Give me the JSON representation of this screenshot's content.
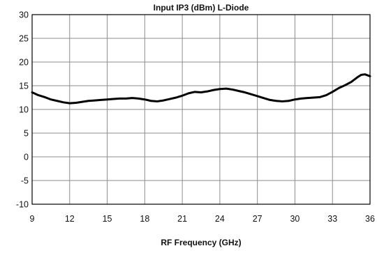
{
  "chart_data": {
    "type": "line",
    "title": "Input IP3 (dBm) L-Diode",
    "xlabel": "RF Frequency (GHz)",
    "ylabel": "",
    "xlim": [
      9,
      36
    ],
    "ylim": [
      -10,
      30
    ],
    "xticks": [
      9,
      12,
      15,
      18,
      21,
      24,
      27,
      30,
      33,
      36
    ],
    "yticks": [
      -10,
      -5,
      0,
      5,
      10,
      15,
      20,
      25,
      30
    ],
    "xtick_labels": [
      "9",
      "12",
      "15",
      "18",
      "21",
      "24",
      "27",
      "30",
      "33",
      "36"
    ],
    "ytick_labels": [
      "-10",
      "-5",
      "0",
      "5",
      "10",
      "15",
      "20",
      "25",
      "30"
    ],
    "grid": true,
    "series": [
      {
        "color": "#000000",
        "x": [
          9.0,
          9.5,
          10.0,
          10.5,
          11.0,
          11.5,
          12.0,
          12.5,
          13.0,
          13.5,
          14.0,
          14.5,
          15.0,
          15.5,
          16.0,
          16.5,
          17.0,
          17.5,
          18.0,
          18.5,
          19.0,
          19.5,
          20.0,
          20.5,
          21.0,
          21.5,
          22.0,
          22.5,
          23.0,
          23.5,
          24.0,
          24.5,
          25.0,
          25.5,
          26.0,
          26.5,
          27.0,
          27.5,
          28.0,
          28.5,
          29.0,
          29.5,
          30.0,
          30.5,
          31.0,
          31.5,
          32.0,
          32.5,
          33.0,
          33.5,
          34.0,
          34.5,
          35.0,
          35.3,
          35.6,
          36.0
        ],
        "values": [
          13.6,
          13.0,
          12.6,
          12.1,
          11.8,
          11.5,
          11.3,
          11.4,
          11.6,
          11.8,
          11.9,
          12.0,
          12.1,
          12.2,
          12.3,
          12.3,
          12.4,
          12.3,
          12.1,
          11.8,
          11.7,
          11.9,
          12.2,
          12.5,
          12.9,
          13.4,
          13.7,
          13.6,
          13.8,
          14.1,
          14.3,
          14.4,
          14.2,
          13.9,
          13.6,
          13.2,
          12.8,
          12.4,
          12.0,
          11.8,
          11.7,
          11.8,
          12.1,
          12.3,
          12.4,
          12.5,
          12.6,
          13.0,
          13.7,
          14.5,
          15.1,
          15.8,
          16.8,
          17.3,
          17.4,
          17.0
        ]
      }
    ]
  }
}
